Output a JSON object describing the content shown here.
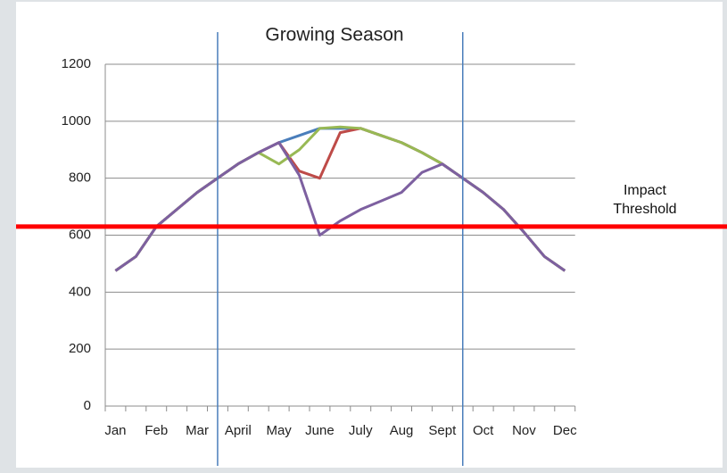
{
  "chart_data": {
    "type": "line",
    "title": "Growing Season",
    "categories": [
      "Jan",
      null,
      "Feb",
      null,
      "Mar",
      null,
      "April",
      null,
      "May",
      null,
      "June",
      null,
      "July",
      null,
      "Aug",
      null,
      "Sept",
      null,
      "Oct",
      null,
      "Nov",
      null,
      "Dec"
    ],
    "series": [
      {
        "color": "#4a7ebb",
        "values": [
          475,
          525,
          630,
          690,
          750,
          800,
          850,
          890,
          925,
          950,
          975,
          975,
          975,
          950,
          925,
          890,
          850,
          800,
          750,
          690,
          610,
          525,
          475
        ]
      },
      {
        "color": "#be4b48",
        "values": [
          475,
          525,
          630,
          690,
          750,
          800,
          850,
          890,
          925,
          825,
          800,
          960,
          975,
          950,
          925,
          890,
          850,
          800,
          750,
          690,
          610,
          525,
          475
        ]
      },
      {
        "color": "#98b954",
        "values": [
          475,
          525,
          630,
          690,
          750,
          800,
          850,
          890,
          850,
          900,
          975,
          980,
          975,
          950,
          925,
          890,
          850,
          800,
          750,
          690,
          610,
          525,
          475
        ]
      },
      {
        "color": "#7d60a0",
        "values": [
          475,
          525,
          630,
          690,
          750,
          800,
          850,
          890,
          925,
          810,
          600,
          650,
          690,
          720,
          750,
          820,
          850,
          800,
          750,
          690,
          610,
          525,
          475
        ]
      }
    ],
    "ylim": [
      0,
      1200
    ],
    "yticks": [
      0,
      200,
      400,
      600,
      800,
      1000,
      1200
    ],
    "grid": true,
    "vlines": [
      5,
      17
    ],
    "vline_color": "#4a7ebb",
    "threshold": {
      "value": 630,
      "label": "Impact Threshold",
      "color": "#ff0000"
    }
  }
}
